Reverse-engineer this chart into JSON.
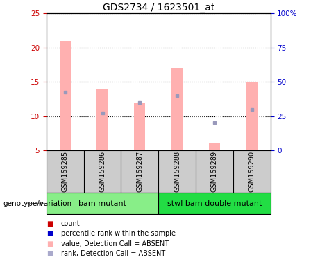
{
  "title": "GDS2734 / 1623501_at",
  "samples": [
    "GSM159285",
    "GSM159286",
    "GSM159287",
    "GSM159288",
    "GSM159289",
    "GSM159290"
  ],
  "bar_values_pink": [
    21.0,
    14.0,
    12.0,
    17.0,
    6.0,
    15.0
  ],
  "rank_dots_blue": [
    13.5,
    10.5,
    12.0,
    13.0,
    9.0,
    11.0
  ],
  "ylim_left": [
    5,
    25
  ],
  "ylim_right": [
    0,
    100
  ],
  "yticks_left": [
    5,
    10,
    15,
    20,
    25
  ],
  "yticks_right": [
    0,
    25,
    50,
    75,
    100
  ],
  "ytick_labels_right": [
    "0",
    "25",
    "50",
    "75",
    "100%"
  ],
  "bar_bottom": 5,
  "group1_samples": [
    0,
    1,
    2
  ],
  "group2_samples": [
    3,
    4,
    5
  ],
  "group1_label": "bam mutant",
  "group2_label": "stwl bam double mutant",
  "group1_color": "#88ee88",
  "group2_color": "#22dd44",
  "genotype_label": "genotype/variation",
  "pink_bar_color": "#ffb0b0",
  "blue_dot_color": "#9999bb",
  "legend_items": [
    {
      "color": "#cc0000",
      "label": "count"
    },
    {
      "color": "#0000cc",
      "label": "percentile rank within the sample"
    },
    {
      "color": "#ffb0b0",
      "label": "value, Detection Call = ABSENT"
    },
    {
      "color": "#aaaacc",
      "label": "rank, Detection Call = ABSENT"
    }
  ],
  "tick_color_left": "#cc0000",
  "tick_color_right": "#0000cc",
  "bg_color": "#ffffff",
  "box_bg": "#cccccc",
  "bar_width": 0.3
}
